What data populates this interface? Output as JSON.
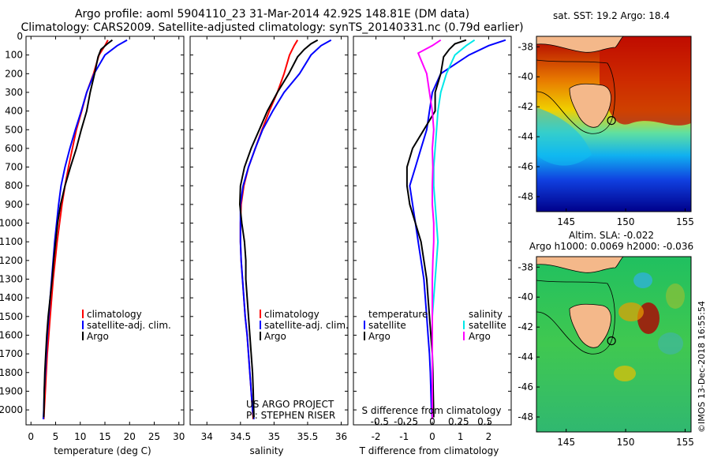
{
  "header": {
    "title1": "Argo profile: aoml 5904110_23 31-Mar-2014 42.92S 148.81E (DM data)",
    "title2": "Climatology: CARS2009. Satellite-adjusted climatology: synTS_20140331.nc (0.79d earlier)"
  },
  "credit": "©IMOS 13-Dec-2018 16:55:54",
  "colors": {
    "climatology": "#ff0000",
    "satellite": "#0000ff",
    "argo": "#000000",
    "salinity_satellite": "#00e8e8",
    "salinity_argo": "#ff00ff"
  },
  "chart_data": [
    {
      "type": "line",
      "panel": "temperature",
      "xlabel": "temperature (deg C)",
      "xlim": [
        -1,
        31
      ],
      "xticks": [
        "0",
        "5",
        "10",
        "15",
        "20",
        "25",
        "30"
      ],
      "ylim": [
        2080,
        0
      ],
      "yticks": [
        "0",
        "100",
        "200",
        "300",
        "400",
        "500",
        "600",
        "700",
        "800",
        "900",
        "1000",
        "1100",
        "1200",
        "1300",
        "1400",
        "1500",
        "1600",
        "1700",
        "1800",
        "1900",
        "2000"
      ],
      "legend": [
        "climatology",
        "satellite-adj. clim.",
        "Argo"
      ],
      "series": [
        {
          "name": "climatology",
          "color": "#ff0000",
          "x": [
            15.6,
            15.0,
            13.8,
            12.7,
            11.3,
            10.3,
            9.2,
            8.4,
            7.6,
            6.9,
            6.3,
            5.8,
            5.3,
            4.9,
            4.5,
            4.2,
            3.9,
            3.6,
            3.3,
            3.1,
            2.9,
            2.7,
            2.6
          ],
          "y": [
            20,
            50,
            100,
            200,
            300,
            400,
            500,
            600,
            700,
            800,
            900,
            1000,
            1100,
            1200,
            1300,
            1400,
            1500,
            1600,
            1700,
            1800,
            1900,
            2000,
            2050
          ]
        },
        {
          "name": "satellite-adj. clim.",
          "color": "#0000ff",
          "x": [
            19.5,
            17.5,
            15.0,
            12.8,
            11.3,
            10.2,
            9.0,
            7.9,
            6.9,
            6.1,
            5.6,
            5.2,
            4.8,
            4.5,
            4.2,
            3.9,
            3.6,
            3.3,
            3.1,
            2.9,
            2.7,
            2.6,
            2.5
          ],
          "y": [
            20,
            50,
            100,
            200,
            300,
            400,
            500,
            600,
            700,
            800,
            900,
            1000,
            1100,
            1200,
            1300,
            1400,
            1500,
            1600,
            1700,
            1800,
            1900,
            2000,
            2050
          ]
        },
        {
          "name": "Argo",
          "color": "#000000",
          "x": [
            16.5,
            15.5,
            14.2,
            13.6,
            12.9,
            12.0,
            11.3,
            10.2,
            9.2,
            8.0,
            6.9,
            6.0,
            5.4,
            5.0,
            4.6,
            4.3,
            3.9,
            3.5,
            3.2,
            3.0,
            2.8,
            2.7,
            2.6
          ],
          "y": [
            20,
            40,
            70,
            110,
            200,
            300,
            400,
            500,
            600,
            700,
            800,
            900,
            1000,
            1100,
            1200,
            1300,
            1400,
            1500,
            1600,
            1700,
            1800,
            1900,
            2040
          ]
        }
      ]
    },
    {
      "type": "line",
      "panel": "salinity",
      "xlabel": "salinity",
      "xlim": [
        33.75,
        36.1
      ],
      "xticks": [
        "34",
        "34.5",
        "35",
        "35.5",
        "36"
      ],
      "ylim": [
        2080,
        0
      ],
      "legend": [
        "climatology",
        "satellite-adj. clim.",
        "Argo"
      ],
      "annotation": [
        "US ARGO PROJECT",
        "PI: STEPHEN RISER"
      ],
      "series": [
        {
          "name": "climatology",
          "color": "#ff0000",
          "x": [
            35.35,
            35.3,
            35.23,
            35.15,
            35.05,
            34.93,
            34.82,
            34.72,
            34.62,
            34.55,
            34.51,
            34.5,
            34.5,
            34.51,
            34.53,
            34.55,
            34.57,
            34.6,
            34.62,
            34.64,
            34.66,
            34.68,
            34.69
          ],
          "y": [
            20,
            50,
            100,
            200,
            300,
            400,
            500,
            600,
            700,
            800,
            900,
            1000,
            1100,
            1200,
            1300,
            1400,
            1500,
            1600,
            1700,
            1800,
            1900,
            2000,
            2050
          ]
        },
        {
          "name": "satellite-adj. clim.",
          "color": "#0000ff",
          "x": [
            35.85,
            35.7,
            35.55,
            35.38,
            35.15,
            34.98,
            34.83,
            34.72,
            34.62,
            34.54,
            34.5,
            34.5,
            34.5,
            34.51,
            34.53,
            34.55,
            34.57,
            34.6,
            34.62,
            34.64,
            34.66,
            34.68,
            34.7
          ],
          "y": [
            20,
            50,
            100,
            200,
            300,
            400,
            500,
            600,
            700,
            800,
            900,
            1000,
            1100,
            1200,
            1300,
            1400,
            1500,
            1600,
            1700,
            1800,
            1900,
            2000,
            2050
          ]
        },
        {
          "name": "Argo",
          "color": "#000000",
          "x": [
            35.65,
            35.55,
            35.45,
            35.35,
            35.22,
            35.05,
            34.9,
            34.78,
            34.66,
            34.56,
            34.5,
            34.49,
            34.52,
            34.56,
            34.58,
            34.58,
            34.6,
            34.62,
            34.64,
            34.66,
            34.68,
            34.69,
            34.7
          ],
          "y": [
            20,
            40,
            70,
            110,
            200,
            300,
            400,
            500,
            600,
            700,
            800,
            900,
            1000,
            1100,
            1200,
            1300,
            1400,
            1500,
            1600,
            1700,
            1800,
            1900,
            2040
          ]
        }
      ]
    },
    {
      "type": "line",
      "panel": "difference",
      "xlabel": "T difference from climatology",
      "xlabel2": "S difference from climatology",
      "xlim": [
        -2.8,
        2.8
      ],
      "xticks": [
        "-2",
        "-1",
        "0",
        "1",
        "2"
      ],
      "xticks2": [
        "-0.5",
        "-0.25",
        "0",
        "0.25",
        "0.5"
      ],
      "ylim": [
        2080,
        0
      ],
      "legend_left_title": "temperature",
      "legend_right_title": "salinity",
      "legend": [
        "satellite",
        "Argo",
        "satellite",
        "Argo"
      ],
      "series": [
        {
          "name": "T satellite",
          "color": "#0000ff",
          "x": [
            2.6,
            2.0,
            1.3,
            0.3,
            0.0,
            -0.1,
            -0.2,
            -0.4,
            -0.6,
            -0.8,
            -0.7,
            -0.6,
            -0.5,
            -0.4,
            -0.3,
            -0.25,
            -0.2,
            -0.15,
            -0.1,
            -0.07,
            -0.05,
            -0.03,
            0.0
          ],
          "y": [
            20,
            50,
            100,
            200,
            300,
            400,
            500,
            600,
            700,
            800,
            900,
            1000,
            1100,
            1200,
            1300,
            1400,
            1500,
            1600,
            1700,
            1800,
            1900,
            2000,
            2050
          ]
        },
        {
          "name": "T Argo",
          "color": "#000000",
          "x": [
            1.2,
            0.8,
            0.6,
            0.4,
            0.3,
            0.1,
            0.1,
            -0.3,
            -0.7,
            -0.9,
            -0.9,
            -0.8,
            -0.6,
            -0.4,
            -0.3,
            -0.2,
            -0.15,
            -0.1,
            -0.05,
            0.0,
            0.02,
            0.03,
            0.05
          ],
          "y": [
            20,
            40,
            70,
            110,
            200,
            300,
            400,
            500,
            600,
            700,
            800,
            900,
            1000,
            1100,
            1200,
            1300,
            1400,
            1500,
            1600,
            1700,
            1800,
            1900,
            2040
          ]
        },
        {
          "name": "S satellite",
          "color": "#00e8e8",
          "x": [
            1.5,
            1.2,
            0.8,
            0.5,
            0.3,
            0.2,
            0.15,
            0.1,
            0.05,
            0.05,
            0.1,
            0.15,
            0.2,
            0.15,
            0.1,
            0.05,
            0.0,
            0.0,
            0.0,
            0.0,
            0.0,
            0.0,
            0.0
          ],
          "y": [
            20,
            50,
            100,
            200,
            300,
            400,
            500,
            600,
            700,
            800,
            900,
            1000,
            1100,
            1200,
            1300,
            1400,
            1500,
            1600,
            1700,
            1800,
            1900,
            2000,
            2050
          ]
        },
        {
          "name": "S Argo",
          "color": "#ff00ff",
          "x": [
            0.3,
            0.0,
            -0.5,
            -0.2,
            -0.1,
            0.0,
            0.05,
            0.0,
            0.02,
            0.0,
            0.0,
            0.05,
            0.05,
            0.02,
            0.0,
            0.0,
            0.0,
            0.0,
            0.0,
            0.0,
            0.0,
            0.0,
            0.0
          ],
          "y": [
            20,
            50,
            90,
            200,
            300,
            400,
            500,
            600,
            700,
            800,
            900,
            1000,
            1100,
            1200,
            1300,
            1400,
            1500,
            1600,
            1700,
            1800,
            1900,
            2000,
            2050
          ]
        }
      ]
    },
    {
      "type": "heatmap",
      "panel": "sst-map",
      "title": "sat. SST: 19.2 Argo: 18.4",
      "xlim": [
        142.5,
        155.5
      ],
      "ylim": [
        -49,
        -37.3
      ],
      "xticks": [
        "145",
        "150",
        "155"
      ],
      "yticks": [
        "-38",
        "-40",
        "-42",
        "-44",
        "-46",
        "-48"
      ],
      "float_location": {
        "lon": 148.81,
        "lat": -42.92
      }
    },
    {
      "type": "heatmap",
      "panel": "sla-map",
      "title": "Altim. SLA: -0.022",
      "subtitle": "Argo h1000: 0.0069 h2000: -0.036",
      "xlim": [
        142.5,
        155.5
      ],
      "ylim": [
        -49,
        -37.3
      ],
      "xticks": [
        "145",
        "150",
        "155"
      ],
      "yticks": [
        "-38",
        "-40",
        "-42",
        "-44",
        "-46",
        "-48"
      ],
      "float_location": {
        "lon": 148.81,
        "lat": -42.92
      }
    }
  ]
}
